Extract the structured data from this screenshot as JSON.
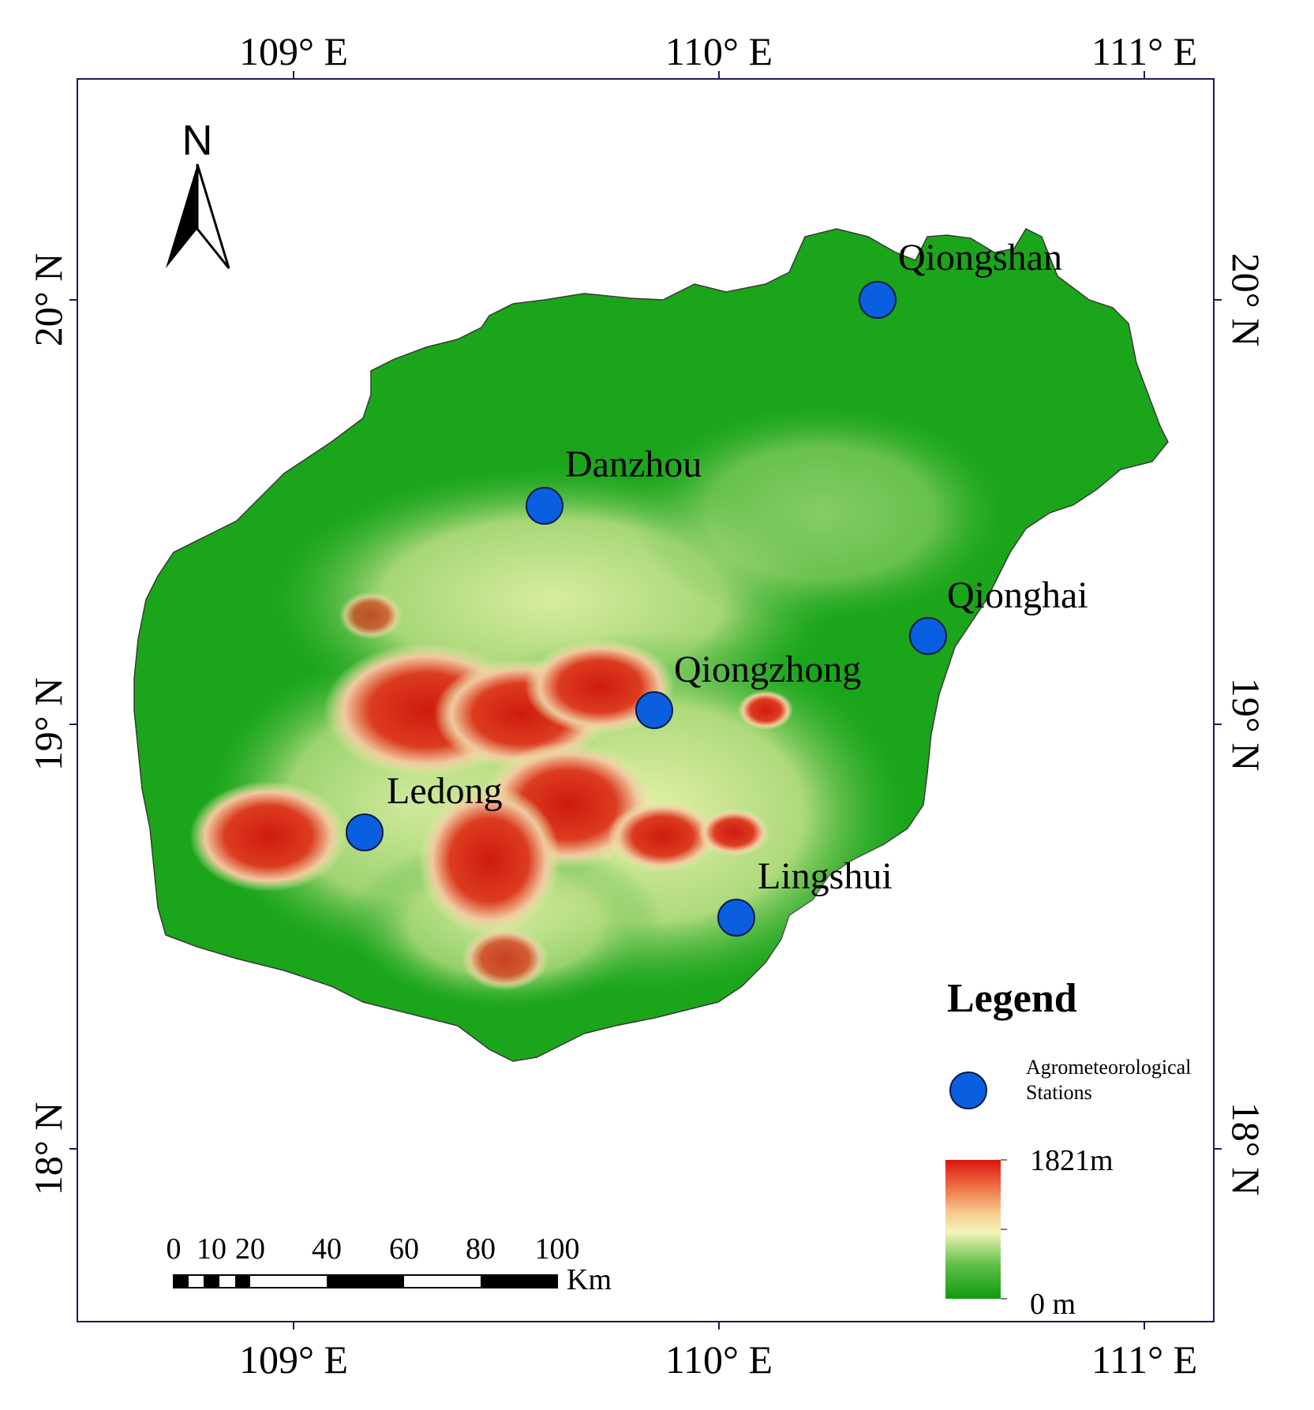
{
  "map": {
    "top_labels": [
      "109° E",
      "110° E",
      "111° E"
    ],
    "bottom_labels": [
      "109° E",
      "110° E",
      "111° E"
    ],
    "left_labels": [
      "20° N",
      "19° N",
      "18° N"
    ],
    "right_labels": [
      "20° N",
      "19° N",
      "18° N"
    ],
    "north_label": "N",
    "stations": [
      {
        "name": "Qiongshan"
      },
      {
        "name": "Danzhou"
      },
      {
        "name": "Qionghai"
      },
      {
        "name": "Qiongzhong"
      },
      {
        "name": "Ledong"
      },
      {
        "name": "Lingshui"
      }
    ],
    "colors": {
      "station_fill": "#0a5fe0",
      "lowland": "#1aa51a",
      "mid": "#f3f2b0",
      "high": "#d41a10",
      "frame": "#1a1a5a"
    }
  },
  "legend": {
    "title": "Legend",
    "station_label_line1": "Agrometeorological",
    "station_label_line2": "Stations",
    "elev_max": "1821m",
    "elev_min": "0 m"
  },
  "scale_bar": {
    "ticks": [
      "0",
      "10",
      "20",
      "40",
      "60",
      "80",
      "100"
    ],
    "unit": "Km"
  }
}
